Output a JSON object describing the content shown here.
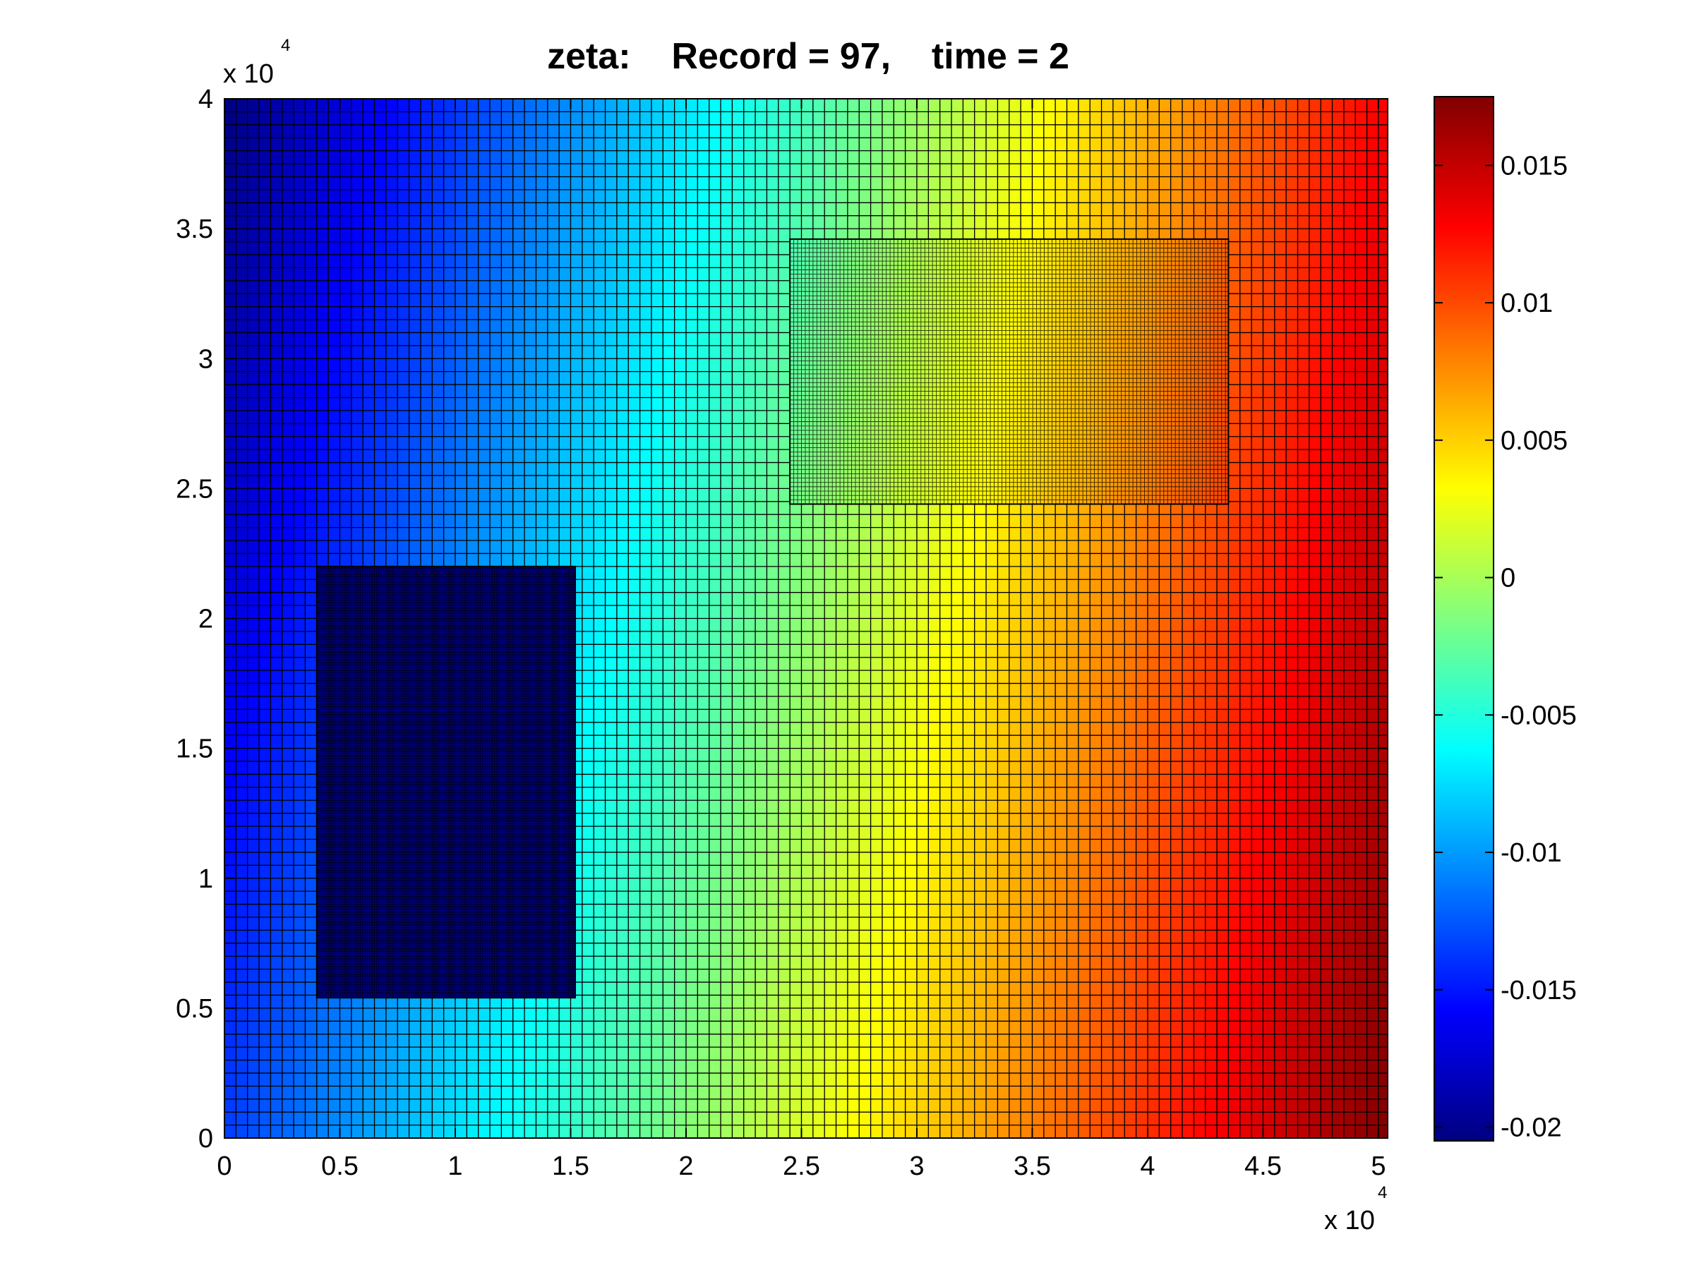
{
  "chart_data": {
    "type": "heatmap",
    "title": "zeta:    Record = 97,    time = 2",
    "xlabel": "",
    "ylabel": "",
    "x_exponent": {
      "base": "x 10",
      "power": "4"
    },
    "y_exponent": {
      "base": "x 10",
      "power": "4"
    },
    "xlim": [
      0,
      50400
    ],
    "ylim": [
      0,
      40000
    ],
    "x_ticks": [
      0,
      0.5,
      1,
      1.5,
      2,
      2.5,
      3,
      3.5,
      4,
      4.5,
      5
    ],
    "x_tick_labels": [
      "0",
      "0.5",
      "1",
      "1.5",
      "2",
      "2.5",
      "3",
      "3.5",
      "4",
      "4.5",
      "5"
    ],
    "y_ticks": [
      0,
      0.5,
      1,
      1.5,
      2,
      2.5,
      3,
      3.5,
      4
    ],
    "y_tick_labels": [
      "0",
      "0.5",
      "1",
      "1.5",
      "2",
      "2.5",
      "3",
      "3.5",
      "4"
    ],
    "grid": true,
    "colormap": "jet",
    "clim": [
      -0.0205,
      0.0175
    ],
    "colorbar_ticks": [
      -0.02,
      -0.015,
      -0.01,
      -0.005,
      0,
      0.005,
      0.01,
      0.015
    ],
    "colorbar_tick_labels": [
      "-0.02",
      "-0.015",
      "-0.01",
      "-0.005",
      "0",
      "0.005",
      "0.01",
      "0.015"
    ],
    "field_corners": {
      "bottom_left": -0.0135,
      "top_left": -0.0205,
      "bottom_right": 0.0175,
      "top_right": 0.013
    },
    "grids": [
      {
        "name": "parent",
        "x_range": [
          0,
          50400
        ],
        "y_range": [
          0,
          40000
        ],
        "spacing": 500
      },
      {
        "name": "child-1",
        "x_range": [
          4000,
          15200
        ],
        "y_range": [
          5400,
          22000
        ],
        "spacing": 100,
        "value": -0.0205
      },
      {
        "name": "child-2",
        "x_range": [
          24500,
          43500
        ],
        "y_range": [
          24400,
          34600
        ],
        "spacing": 167
      }
    ]
  }
}
